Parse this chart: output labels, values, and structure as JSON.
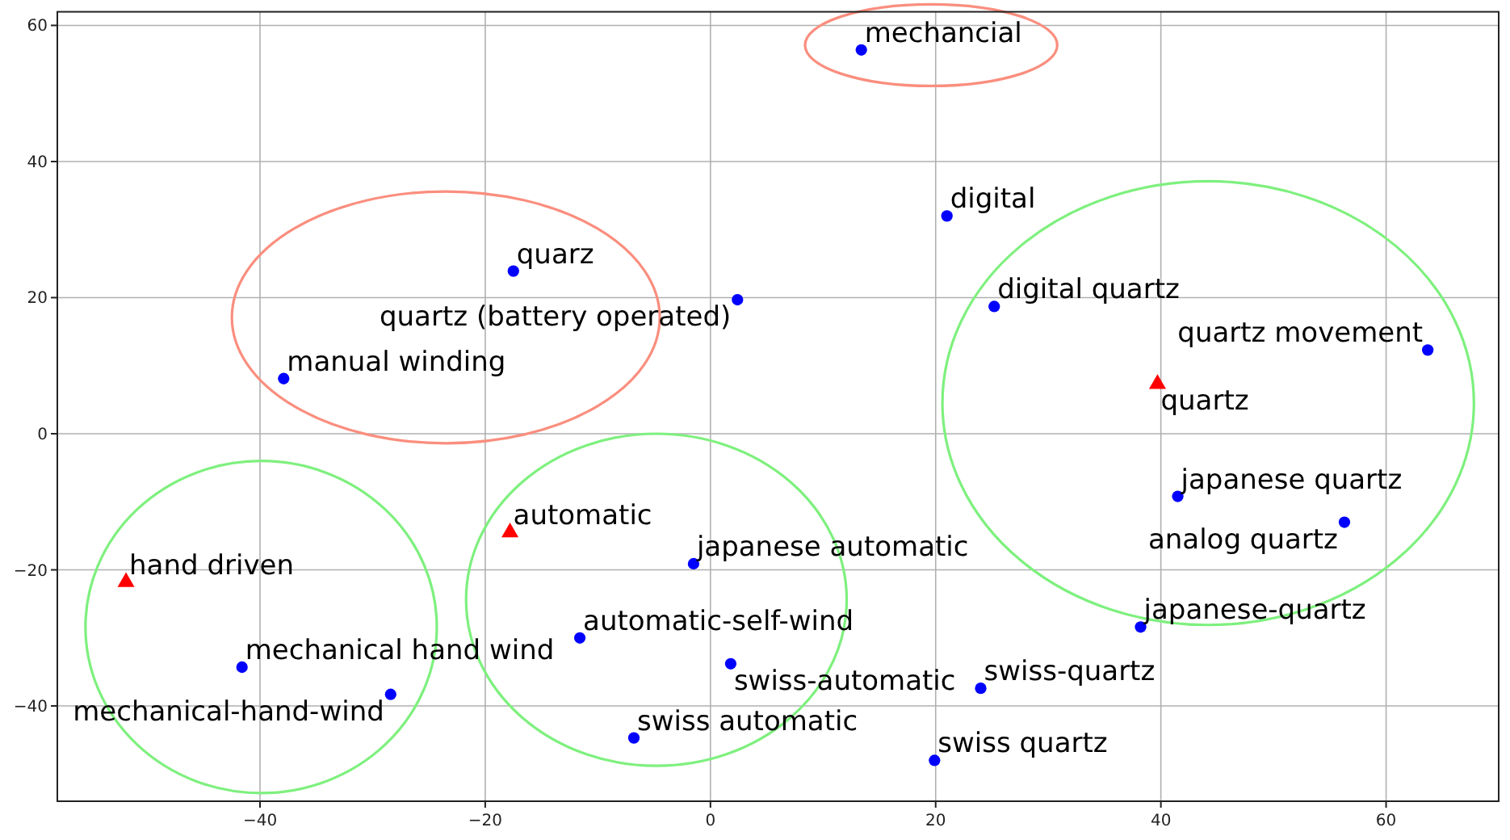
{
  "chart_data": {
    "type": "scatter",
    "xlim": [
      -58,
      70
    ],
    "xticks": [
      {
        "value": -40,
        "label": "−40"
      },
      {
        "value": -20,
        "label": "−20"
      },
      0,
      20,
      40,
      60
    ],
    "ylim": [
      -54,
      62
    ],
    "yticks": [
      {
        "value": -40,
        "label": "−40"
      },
      {
        "value": -20,
        "label": "−20"
      },
      0,
      20,
      40,
      60
    ],
    "grid": true,
    "series": [
      {
        "color": "#0000ff",
        "marker": "circle",
        "x": [
          13.4,
          21.0,
          25.2,
          63.7,
          -17.5,
          2.4,
          -37.9,
          -1.5,
          -11.6,
          1.8,
          -6.8,
          -41.6,
          -28.4,
          41.5,
          56.3,
          38.2,
          24.0,
          19.9
        ],
        "values": [
          56.4,
          32.0,
          18.7,
          12.3,
          23.9,
          19.7,
          8.1,
          -19.1,
          -30.0,
          -33.8,
          -44.7,
          -34.3,
          -38.3,
          -9.2,
          -13.0,
          -28.4,
          -37.4,
          -48.0
        ]
      },
      {
        "color": "#ff0000",
        "marker": "triangle",
        "x": [
          39.7,
          -51.9,
          -17.8
        ],
        "values": [
          7.3,
          -21.8,
          -14.5
        ]
      }
    ],
    "annotations": [
      {
        "text": "mechancial",
        "x": 13.4,
        "y": 56.4
      },
      {
        "text": "digital",
        "x": 21.0,
        "y": 32.0
      },
      {
        "text": "digital quartz",
        "x": 25.2,
        "y": 18.7
      },
      {
        "text": "quartz movement",
        "x": 63.7,
        "y": 12.3
      },
      {
        "text": "quarz",
        "x": -17.5,
        "y": 23.9
      },
      {
        "text": "quartz (battery operated)",
        "x": 2.4,
        "y": 19.7
      },
      {
        "text": "manual winding",
        "x": -37.9,
        "y": 8.1
      },
      {
        "text": "japanese automatic",
        "x": -1.5,
        "y": -19.1
      },
      {
        "text": "automatic-self-wind",
        "x": -11.6,
        "y": -30.0
      },
      {
        "text": "swiss-automatic",
        "x": 1.8,
        "y": -33.8
      },
      {
        "text": "swiss automatic",
        "x": -6.8,
        "y": -44.7
      },
      {
        "text": "mechanical hand wind",
        "x": -41.6,
        "y": -34.3
      },
      {
        "text": "mechanical-hand-wind",
        "x": -28.4,
        "y": -38.3
      },
      {
        "text": "japanese quartz",
        "x": 41.5,
        "y": -9.2
      },
      {
        "text": "analog quartz",
        "x": 56.3,
        "y": -13.0
      },
      {
        "text": "japanese-quartz",
        "x": 38.2,
        "y": -28.4
      },
      {
        "text": "swiss-quartz",
        "x": 24.0,
        "y": -37.4
      },
      {
        "text": "swiss quartz",
        "x": 19.9,
        "y": -48.0
      },
      {
        "text": "quartz",
        "x": 39.7,
        "y": 7.3
      },
      {
        "text": "hand driven",
        "x": -51.9,
        "y": -21.8
      },
      {
        "text": "automatic",
        "x": -17.8,
        "y": -14.5
      }
    ]
  }
}
